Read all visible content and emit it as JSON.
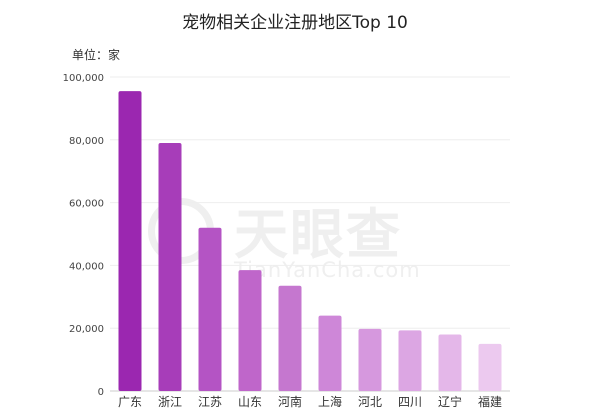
{
  "unit_label": "单位：家",
  "watermark": {
    "brand": "天眼查",
    "url": "TianYanCha.com"
  },
  "chart_data": {
    "type": "bar",
    "title": "宠物相关企业注册地区Top 10",
    "categories": [
      "广东",
      "浙江",
      "江苏",
      "山东",
      "河南",
      "上海",
      "河北",
      "四川",
      "辽宁",
      "福建"
    ],
    "values": [
      95500,
      79000,
      52000,
      38500,
      33500,
      24000,
      19800,
      19300,
      18000,
      15000
    ],
    "yticks": [
      "0",
      "20,000",
      "40,000",
      "60,000",
      "80,000",
      "100,000"
    ],
    "ytick_values": [
      0,
      20000,
      40000,
      60000,
      80000,
      100000
    ],
    "ylim": [
      0,
      100000
    ],
    "grid": true,
    "colors": [
      "#9b27b0",
      "#a73db9",
      "#b454c4",
      "#bf66ca",
      "#c577cf",
      "#ce87d8",
      "#d698de",
      "#dca6e3",
      "#e4b7e9",
      "#ecc9ef"
    ]
  }
}
